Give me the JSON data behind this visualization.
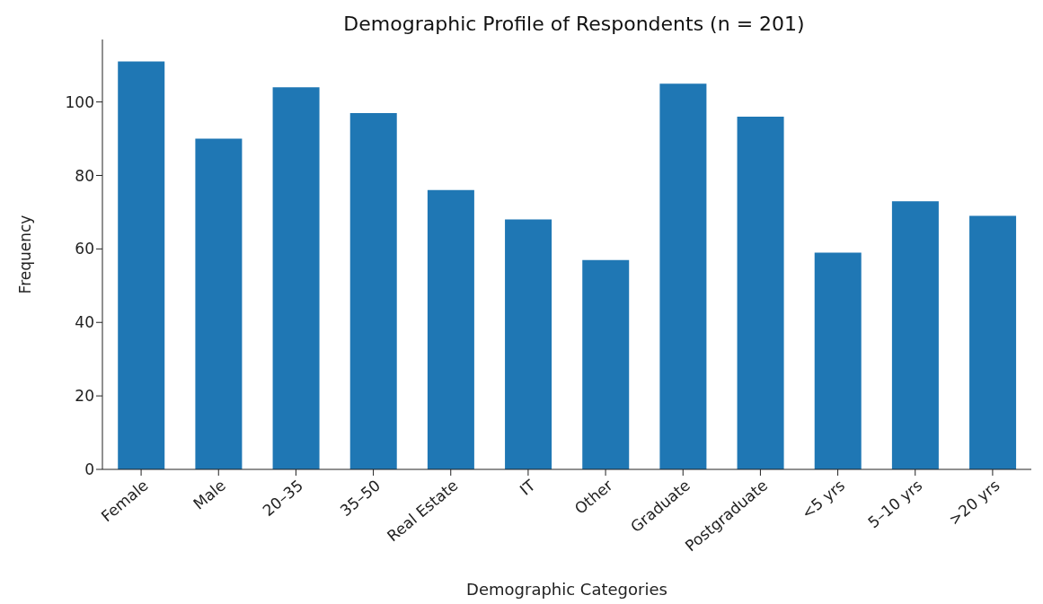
{
  "chart_data": {
    "type": "bar",
    "title": "Demographic Profile of Respondents (n = 201)",
    "xlabel": "Demographic Categories",
    "ylabel": "Frequency",
    "categories": [
      "Female",
      "Male",
      "20–35",
      "35–50",
      "Real Estate",
      "IT",
      "Other",
      "Graduate",
      "Postgraduate",
      "<5 yrs",
      "5–10 yrs",
      ">20 yrs"
    ],
    "values": [
      111,
      90,
      104,
      97,
      76,
      68,
      57,
      105,
      96,
      59,
      73,
      69
    ],
    "color": "#1f77b4",
    "ylim": [
      0,
      117
    ],
    "yticks": [
      0,
      20,
      40,
      60,
      80,
      100
    ],
    "grid": false
  }
}
